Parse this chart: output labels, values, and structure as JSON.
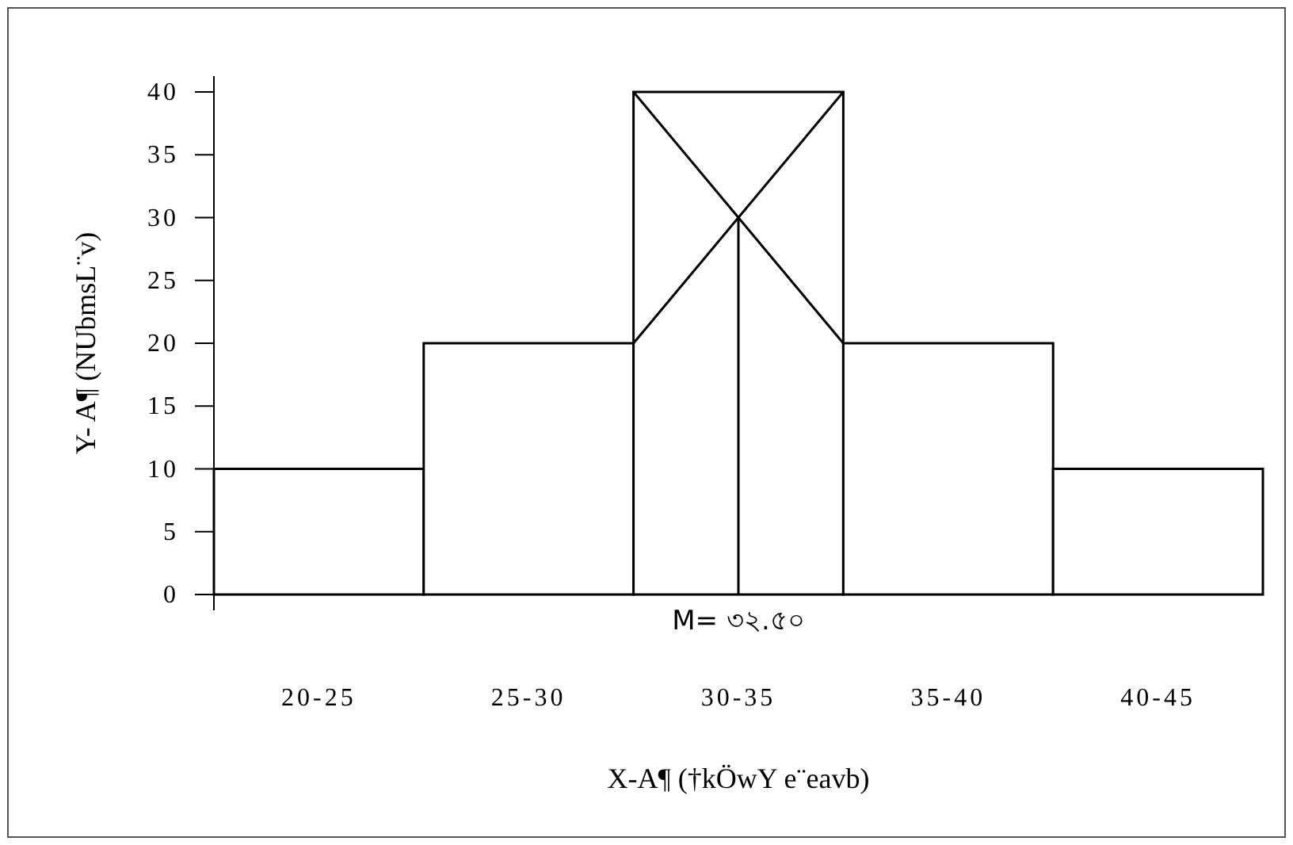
{
  "chart_data": {
    "type": "bar",
    "xlabel": "X-A¶ (†kÖwY e¨eavb)",
    "ylabel": "Y- A¶ (NUbmsL¨v)",
    "categories": [
      "20-25",
      "25-30",
      "30-35",
      "35-40",
      "40-45"
    ],
    "values": [
      10,
      20,
      40,
      20,
      10
    ],
    "color": "#ffffff",
    "ylim": [
      0,
      40
    ],
    "yticks": [
      0,
      5,
      10,
      15,
      20,
      25,
      30,
      35,
      40
    ],
    "annotations": [
      "M= ৩২.৫০"
    ]
  }
}
